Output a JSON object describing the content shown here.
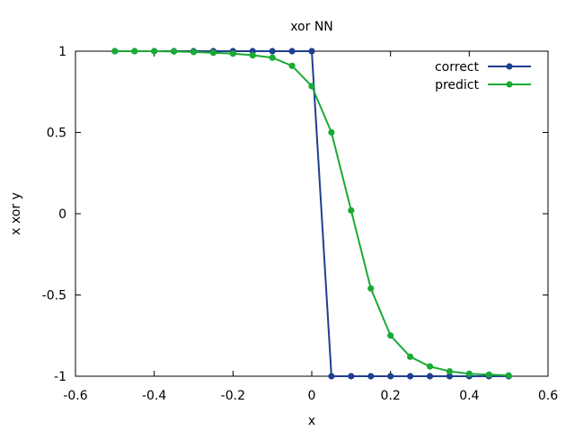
{
  "chart_data": {
    "type": "line",
    "title": "xor NN",
    "xlabel": "x",
    "ylabel": "x xor y",
    "xlim": [
      -0.6,
      0.6
    ],
    "ylim": [
      -1,
      1
    ],
    "xticks": [
      -0.6,
      -0.4,
      -0.2,
      0,
      0.2,
      0.4,
      0.6
    ],
    "xtick_labels": [
      "-0.6",
      "-0.4",
      "-0.2",
      "0",
      "0.2",
      "0.4",
      "0.6"
    ],
    "yticks": [
      -1,
      -0.5,
      0,
      0.5,
      1
    ],
    "ytick_labels": [
      "-1",
      "-0.5",
      "0",
      "0.5",
      "1"
    ],
    "grid": false,
    "legend_position": "top-right",
    "x": [
      -0.5,
      -0.45,
      -0.4,
      -0.35,
      -0.3,
      -0.25,
      -0.2,
      -0.15,
      -0.1,
      -0.05,
      0,
      0.05,
      0.1,
      0.15,
      0.2,
      0.25,
      0.3,
      0.35,
      0.4,
      0.45,
      0.5
    ],
    "series": [
      {
        "name": "correct",
        "color": "#1f3f8f",
        "values": [
          1,
          1,
          1,
          1,
          1,
          1,
          1,
          1,
          1,
          1,
          1,
          -1,
          -1,
          -1,
          -1,
          -1,
          -1,
          -1,
          -1,
          -1,
          -1
        ]
      },
      {
        "name": "predict",
        "color": "#1aaa35",
        "values": [
          1,
          1,
          1,
          0.998,
          0.995,
          0.99,
          0.985,
          0.975,
          0.96,
          0.91,
          0.785,
          0.5,
          0.02,
          -0.46,
          -0.75,
          -0.88,
          -0.94,
          -0.97,
          -0.985,
          -0.99,
          -0.995
        ]
      }
    ]
  }
}
